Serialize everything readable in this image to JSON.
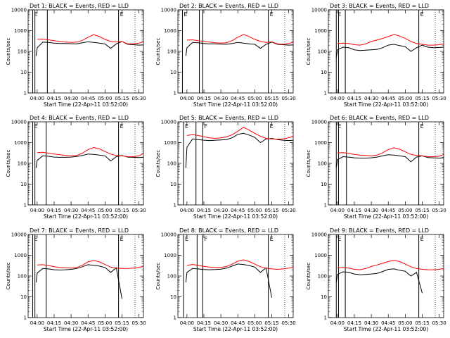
{
  "figure": {
    "xlabel": "Start Time (22-Apr-11 03:52:00)",
    "ylabel": "Counts/sec",
    "x_tick_labels": [
      "04:00",
      "04:15",
      "04:30",
      "04:45",
      "05:00",
      "05:15",
      "05:30"
    ],
    "y_tick_labels": [
      "1",
      "10",
      "100",
      "1000",
      "10000"
    ],
    "colors": {
      "events": "#000000",
      "lld": "#ff0000",
      "axes": "#000000"
    },
    "marker_labels": {
      "left": "E",
      "right": "E",
      "extra": "F"
    }
  },
  "chart_data": [
    {
      "type": "line",
      "title": "Det 1: BLACK = Events, RED = LLD",
      "xlabel": "Start Time (22-Apr-11 03:52:00)",
      "ylabel": "Counts/sec",
      "xlim": [
        "03:52",
        "05:34"
      ],
      "ylim": [
        1,
        10000
      ],
      "yscale": "log",
      "x": [
        "03:59",
        "04:00",
        "04:05",
        "04:10",
        "04:15",
        "04:20",
        "04:25",
        "04:30",
        "04:35",
        "04:40",
        "04:45",
        "04:50",
        "04:55",
        "05:00",
        "05:05",
        "05:10",
        "05:15",
        "05:20",
        "05:25",
        "05:30",
        "05:34"
      ],
      "series": [
        {
          "name": "Events",
          "color": "#000000",
          "values": [
            60,
            150,
            280,
            270,
            250,
            240,
            240,
            235,
            230,
            260,
            290,
            270,
            250,
            230,
            140,
            230,
            300,
            220,
            210,
            200,
            205
          ]
        },
        {
          "name": "LLD",
          "color": "#ff0000",
          "values": [
            null,
            380,
            390,
            360,
            330,
            300,
            280,
            270,
            280,
            340,
            480,
            640,
            520,
            380,
            300,
            280,
            300,
            230,
            230,
            250,
            290
          ]
        }
      ],
      "vertical_markers": [
        "03:56",
        "03:58",
        "04:09",
        "05:12"
      ],
      "marker_tags": [
        "E",
        "E"
      ]
    },
    {
      "type": "line",
      "title": "Det 2: BLACK = Events, RED = LLD",
      "xlabel": "Start Time (22-Apr-11 03:52:00)",
      "ylabel": "Counts/sec",
      "xlim": [
        "03:52",
        "05:34"
      ],
      "ylim": [
        1,
        10000
      ],
      "yscale": "log",
      "x": [
        "03:59",
        "04:00",
        "04:05",
        "04:10",
        "04:15",
        "04:20",
        "04:25",
        "04:30",
        "04:35",
        "04:40",
        "04:45",
        "04:50",
        "04:55",
        "05:00",
        "05:05",
        "05:10",
        "05:15",
        "05:20",
        "05:25",
        "05:30",
        "05:34"
      ],
      "series": [
        {
          "name": "Events",
          "color": "#000000",
          "values": [
            60,
            150,
            270,
            260,
            240,
            230,
            230,
            225,
            220,
            240,
            270,
            250,
            230,
            220,
            140,
            220,
            280,
            220,
            210,
            200,
            205
          ]
        },
        {
          "name": "LLD",
          "color": "#ff0000",
          "values": [
            null,
            350,
            360,
            330,
            300,
            280,
            260,
            250,
            260,
            330,
            480,
            650,
            520,
            380,
            300,
            270,
            290,
            230,
            220,
            240,
            280
          ]
        }
      ],
      "vertical_markers": [
        "03:56",
        "04:11",
        "04:14",
        "05:12"
      ],
      "marker_tags": [
        "E",
        "E"
      ]
    },
    {
      "type": "line",
      "title": "Det 3: BLACK = Events, RED = LLD",
      "xlabel": "Start Time (22-Apr-11 03:52:00)",
      "ylabel": "Counts/sec",
      "xlim": [
        "03:52",
        "05:34"
      ],
      "ylim": [
        1,
        10000
      ],
      "yscale": "log",
      "x": [
        "03:59",
        "04:00",
        "04:05",
        "04:10",
        "04:15",
        "04:20",
        "04:25",
        "04:30",
        "04:35",
        "04:40",
        "04:45",
        "04:50",
        "04:55",
        "05:00",
        "05:05",
        "05:10",
        "05:15",
        "05:20",
        "05:25",
        "05:30",
        "05:34"
      ],
      "series": [
        {
          "name": "Events",
          "color": "#000000",
          "values": [
            50,
            120,
            160,
            150,
            120,
            110,
            115,
            120,
            125,
            150,
            200,
            220,
            190,
            170,
            100,
            150,
            200,
            160,
            150,
            155,
            160
          ]
        },
        {
          "name": "LLD",
          "color": "#ff0000",
          "values": [
            null,
            240,
            250,
            240,
            210,
            200,
            230,
            300,
            350,
            420,
            520,
            650,
            550,
            420,
            300,
            240,
            220,
            200,
            200,
            210,
            230
          ]
        }
      ],
      "vertical_markers": [
        "03:59",
        "04:01",
        "04:07",
        "05:12"
      ],
      "marker_tags": [
        "E",
        "E"
      ]
    },
    {
      "type": "line",
      "title": "Det 4: BLACK = Events, RED = LLD",
      "xlabel": "Start Time (22-Apr-11 03:52:00)",
      "ylabel": "Counts/sec",
      "xlim": [
        "03:52",
        "05:34"
      ],
      "ylim": [
        1,
        10000
      ],
      "yscale": "log",
      "x": [
        "03:59",
        "04:00",
        "04:05",
        "04:10",
        "04:15",
        "04:20",
        "04:25",
        "04:30",
        "04:35",
        "04:40",
        "04:45",
        "04:50",
        "04:55",
        "05:00",
        "05:05",
        "05:10",
        "05:15",
        "05:20",
        "05:25",
        "05:30",
        "05:34"
      ],
      "series": [
        {
          "name": "Events",
          "color": "#000000",
          "values": [
            60,
            140,
            230,
            220,
            200,
            195,
            195,
            200,
            215,
            240,
            280,
            270,
            250,
            230,
            130,
            210,
            240,
            200,
            195,
            190,
            195
          ]
        },
        {
          "name": "LLD",
          "color": "#ff0000",
          "values": [
            null,
            330,
            340,
            310,
            280,
            260,
            240,
            230,
            240,
            310,
            460,
            580,
            500,
            370,
            280,
            240,
            230,
            210,
            210,
            230,
            300
          ]
        }
      ],
      "vertical_markers": [
        "03:56",
        "03:58",
        "04:08",
        "05:12"
      ],
      "marker_tags": [
        "E",
        "E"
      ]
    },
    {
      "type": "line",
      "title": "Det 5: BLACK = Events, RED = LLD",
      "xlabel": "Start Time (22-Apr-11 03:52:00)",
      "ylabel": "Counts/sec",
      "xlim": [
        "03:52",
        "05:34"
      ],
      "ylim": [
        1,
        10000
      ],
      "yscale": "log",
      "x": [
        "03:59",
        "04:00",
        "04:05",
        "04:10",
        "04:15",
        "04:20",
        "04:25",
        "04:30",
        "04:35",
        "04:40",
        "04:45",
        "04:50",
        "04:55",
        "05:00",
        "05:05",
        "05:10",
        "05:15",
        "05:20",
        "05:25",
        "05:30",
        "05:34"
      ],
      "series": [
        {
          "name": "Events",
          "color": "#000000",
          "values": [
            60,
            600,
            1500,
            1400,
            1300,
            1250,
            1300,
            1350,
            1400,
            1700,
            2500,
            2800,
            2300,
            1800,
            1000,
            1500,
            1600,
            1400,
            1300,
            1250,
            1300
          ]
        },
        {
          "name": "LLD",
          "color": "#ff0000",
          "values": [
            null,
            2200,
            2400,
            2200,
            1900,
            1700,
            1600,
            1700,
            1900,
            2400,
            3500,
            5500,
            4000,
            2800,
            2000,
            1600,
            1500,
            1450,
            1500,
            1700,
            2000
          ]
        }
      ],
      "vertical_markers": [
        "03:57",
        "04:08",
        "04:14",
        "05:12"
      ],
      "marker_tags": [
        "E",
        "E",
        "F"
      ]
    },
    {
      "type": "line",
      "title": "Det 6: BLACK = Events, RED = LLD",
      "xlabel": "Start Time (22-Apr-11 03:52:00)",
      "ylabel": "Counts/sec",
      "xlim": [
        "03:52",
        "05:34"
      ],
      "ylim": [
        1,
        10000
      ],
      "yscale": "log",
      "x": [
        "03:59",
        "04:00",
        "04:05",
        "04:10",
        "04:15",
        "04:20",
        "04:25",
        "04:30",
        "04:35",
        "04:40",
        "04:45",
        "04:50",
        "04:55",
        "05:00",
        "05:05",
        "05:10",
        "05:15",
        "05:20",
        "05:25",
        "05:30",
        "05:34"
      ],
      "series": [
        {
          "name": "Events",
          "color": "#000000",
          "values": [
            60,
            150,
            210,
            200,
            185,
            180,
            180,
            185,
            200,
            230,
            260,
            250,
            230,
            210,
            120,
            200,
            230,
            190,
            185,
            180,
            185
          ]
        },
        {
          "name": "LLD",
          "color": "#ff0000",
          "values": [
            null,
            320,
            330,
            300,
            270,
            250,
            240,
            230,
            250,
            320,
            460,
            560,
            480,
            360,
            270,
            240,
            230,
            210,
            210,
            220,
            270
          ]
        }
      ],
      "vertical_markers": [
        "03:59",
        "04:01",
        "04:08",
        "05:12"
      ],
      "marker_tags": [
        "E",
        "E"
      ]
    },
    {
      "type": "line",
      "title": "Det 7: BLACK = Events, RED = LLD",
      "xlabel": "Start Time (22-Apr-11 03:52:00)",
      "ylabel": "Counts/sec",
      "xlim": [
        "03:52",
        "05:34"
      ],
      "ylim": [
        1,
        10000
      ],
      "yscale": "log",
      "x": [
        "03:59",
        "04:00",
        "04:05",
        "04:10",
        "04:15",
        "04:20",
        "04:25",
        "04:30",
        "04:35",
        "04:40",
        "04:45",
        "04:50",
        "04:55",
        "05:00",
        "05:05",
        "05:10",
        "05:15",
        "05:20",
        "05:25",
        "05:30",
        "05:34"
      ],
      "series": [
        {
          "name": "Events",
          "color": "#000000",
          "values": [
            50,
            140,
            230,
            220,
            200,
            195,
            200,
            210,
            230,
            280,
            350,
            330,
            300,
            260,
            150,
            250,
            8,
            null,
            null,
            null,
            null
          ]
        },
        {
          "name": "LLD",
          "color": "#ff0000",
          "values": [
            null,
            340,
            350,
            320,
            280,
            260,
            250,
            240,
            260,
            330,
            480,
            560,
            480,
            360,
            270,
            240,
            230,
            230,
            240,
            260,
            290
          ]
        }
      ],
      "vertical_markers": [
        "03:56",
        "03:58",
        "04:08",
        "05:12"
      ],
      "marker_tags": [
        "E",
        "E"
      ]
    },
    {
      "type": "line",
      "title": "Det 8: BLACK = Events, RED = LLD",
      "xlabel": "Start Time (22-Apr-11 03:52:00)",
      "ylabel": "Counts/sec",
      "xlim": [
        "03:52",
        "05:34"
      ],
      "ylim": [
        1,
        10000
      ],
      "yscale": "log",
      "x": [
        "03:59",
        "04:00",
        "04:05",
        "04:10",
        "04:15",
        "04:20",
        "04:25",
        "04:30",
        "04:35",
        "04:40",
        "04:45",
        "04:50",
        "04:55",
        "05:00",
        "05:05",
        "05:10",
        "05:15",
        "05:20",
        "05:25",
        "05:30",
        "05:34"
      ],
      "series": [
        {
          "name": "Events",
          "color": "#000000",
          "values": [
            50,
            150,
            230,
            220,
            205,
            200,
            205,
            215,
            240,
            300,
            380,
            360,
            320,
            270,
            150,
            250,
            9,
            null,
            null,
            null,
            null
          ]
        },
        {
          "name": "LLD",
          "color": "#ff0000",
          "values": [
            null,
            330,
            360,
            330,
            290,
            270,
            260,
            260,
            290,
            370,
            520,
            600,
            500,
            380,
            280,
            240,
            220,
            210,
            220,
            240,
            260
          ]
        }
      ],
      "vertical_markers": [
        "03:57",
        "04:09",
        "04:14",
        "05:12"
      ],
      "marker_tags": [
        "E",
        "E",
        "F"
      ]
    },
    {
      "type": "line",
      "title": "Det 9: BLACK = Events, RED = LLD",
      "xlabel": "Start Time (22-Apr-11 03:52:00)",
      "ylabel": "Counts/sec",
      "xlim": [
        "03:52",
        "05:34"
      ],
      "ylim": [
        1,
        10000
      ],
      "yscale": "log",
      "x": [
        "03:59",
        "04:00",
        "04:05",
        "04:10",
        "04:15",
        "04:20",
        "04:25",
        "04:30",
        "04:35",
        "04:40",
        "04:45",
        "04:50",
        "04:55",
        "05:00",
        "05:05",
        "05:10",
        "05:15",
        "05:20",
        "05:25",
        "05:30",
        "05:34"
      ],
      "series": [
        {
          "name": "Events",
          "color": "#000000",
          "values": [
            50,
            120,
            160,
            150,
            125,
            115,
            120,
            125,
            135,
            165,
            210,
            220,
            190,
            170,
            100,
            150,
            15,
            null,
            null,
            null,
            null
          ]
        },
        {
          "name": "LLD",
          "color": "#ff0000",
          "values": [
            null,
            250,
            260,
            240,
            210,
            200,
            230,
            290,
            340,
            410,
            500,
            580,
            500,
            380,
            280,
            230,
            210,
            200,
            200,
            210,
            230
          ]
        }
      ],
      "vertical_markers": [
        "03:59",
        "04:01",
        "04:07",
        "05:12"
      ],
      "marker_tags": [
        "E",
        "E"
      ]
    }
  ]
}
